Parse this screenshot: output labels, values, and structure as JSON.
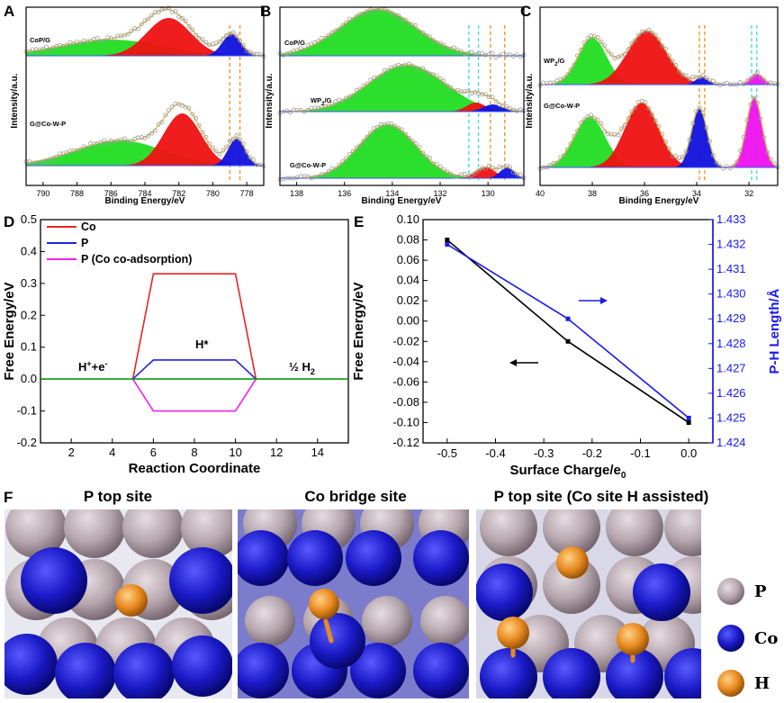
{
  "panels": {
    "A": "A",
    "B": "B",
    "C": "C",
    "D": "D",
    "E": "E",
    "F": "F"
  },
  "xps": {
    "ylabel": "Intensity/a.u.",
    "xlabel": "Binding Energy/eV",
    "A": {
      "ticks": [
        "790",
        "788",
        "786",
        "784",
        "782",
        "780",
        "778"
      ],
      "top": "CoP/G",
      "bottom": "G@Co-W-P"
    },
    "B": {
      "ticks": [
        "138",
        "136",
        "134",
        "132",
        "130"
      ],
      "top": "CoP/G",
      "mid": "WP",
      "mid_sub": "2",
      "mid_suffix": "/G",
      "bottom": "G@Co-W-P"
    },
    "C": {
      "ticks": [
        "40",
        "38",
        "36",
        "34",
        "32"
      ],
      "top": "WP",
      "top_sub": "2",
      "top_suffix": "/G",
      "bottom": "G@Co-W-P"
    }
  },
  "chart_data": [
    {
      "panel": "A",
      "type": "area",
      "title": "",
      "xlabel": "Binding Energy/eV",
      "ylabel": "Intensity/a.u.",
      "xlim": [
        791,
        777
      ],
      "series": [
        {
          "name": "CoP/G green component",
          "color": "#22dd22",
          "center": 786,
          "width": 3.0
        },
        {
          "name": "CoP/G red component",
          "color": "#ee1111",
          "center": 782.6,
          "width": 1.3
        },
        {
          "name": "CoP/G blue component",
          "color": "#1111dd",
          "center": 778.9,
          "width": 0.55
        },
        {
          "name": "G@Co-W-P green component",
          "color": "#22dd22",
          "center": 785.5,
          "width": 2.6
        },
        {
          "name": "G@Co-W-P red component",
          "color": "#ee1111",
          "center": 781.8,
          "width": 1.1
        },
        {
          "name": "G@Co-W-P blue component",
          "color": "#1111dd",
          "center": 778.6,
          "width": 0.5
        }
      ],
      "reference_lines_eV": [
        779.0,
        778.4
      ]
    },
    {
      "panel": "B",
      "type": "area",
      "title": "",
      "xlabel": "Binding Energy/eV",
      "ylabel": "Intensity/a.u.",
      "xlim": [
        138.7,
        128.5
      ],
      "series": [
        {
          "name": "CoP/G green component",
          "color": "#22dd22",
          "center": 134.6,
          "width": 1.6
        },
        {
          "name": "WP2/G green component",
          "color": "#22dd22",
          "center": 133.4,
          "width": 1.6
        },
        {
          "name": "WP2/G red component",
          "color": "#ee1111",
          "center": 130.5,
          "width": 0.4
        },
        {
          "name": "WP2/G blue component",
          "color": "#1111dd",
          "center": 129.8,
          "width": 0.4
        },
        {
          "name": "G@Co-W-P green component",
          "color": "#22dd22",
          "center": 134.2,
          "width": 1.2
        },
        {
          "name": "G@Co-W-P red component",
          "color": "#ee1111",
          "center": 130.1,
          "width": 0.4
        },
        {
          "name": "G@Co-W-P blue component",
          "color": "#1111dd",
          "center": 129.2,
          "width": 0.3
        }
      ],
      "reference_lines_eV": [
        130.8,
        130.4,
        129.9,
        129.3
      ]
    },
    {
      "panel": "C",
      "type": "area",
      "title": "",
      "xlabel": "Binding Energy/eV",
      "ylabel": "Intensity/a.u.",
      "xlim": [
        40,
        30.9
      ],
      "series": [
        {
          "name": "WP2/G green component",
          "color": "#22dd22",
          "center": 38.0,
          "width": 0.55
        },
        {
          "name": "WP2/G red component",
          "color": "#ee1111",
          "center": 35.9,
          "width": 0.75
        },
        {
          "name": "WP2/G blue component",
          "color": "#1111dd",
          "center": 33.8,
          "width": 0.25
        },
        {
          "name": "WP2/G magenta component",
          "color": "#ee11ee",
          "center": 31.7,
          "width": 0.25
        },
        {
          "name": "G@Co-W-P green component",
          "color": "#22dd22",
          "center": 38.1,
          "width": 0.6
        },
        {
          "name": "G@Co-W-P red component",
          "color": "#ee1111",
          "center": 36.1,
          "width": 0.65
        },
        {
          "name": "G@Co-W-P blue component",
          "color": "#1111dd",
          "center": 33.9,
          "width": 0.3
        },
        {
          "name": "G@Co-W-P magenta component",
          "color": "#ee11ee",
          "center": 31.8,
          "width": 0.3
        }
      ],
      "reference_lines_eV": [
        33.9,
        33.7,
        31.9,
        31.7
      ]
    },
    {
      "panel": "D",
      "type": "line",
      "xlabel": "Reaction Coordinate",
      "ylabel": "Free Energy/eV",
      "xlim": [
        0.5,
        15.5
      ],
      "ylim": [
        -0.2,
        0.5
      ],
      "xticks": [
        2,
        4,
        6,
        8,
        10,
        12,
        14
      ],
      "yticks": [
        -0.2,
        -0.1,
        0.0,
        0.1,
        0.2,
        0.3,
        0.4,
        0.5
      ],
      "series": [
        {
          "name": "Co",
          "color": "#ee2222",
          "x": [
            5,
            6,
            10,
            11
          ],
          "y": [
            0,
            0.33,
            0.33,
            0
          ]
        },
        {
          "name": "P",
          "color": "#2222dd",
          "x": [
            5,
            6,
            10,
            11
          ],
          "y": [
            0,
            0.06,
            0.06,
            0
          ]
        },
        {
          "name": "P (Co co-adsorption)",
          "color": "#ee22ee",
          "x": [
            5,
            6,
            10,
            11
          ],
          "y": [
            0,
            -0.1,
            -0.1,
            0
          ]
        },
        {
          "name": "baseline",
          "color": "#119911",
          "x": [
            0.5,
            5,
            11,
            15.5
          ],
          "y": [
            0,
            0,
            0,
            0
          ]
        }
      ],
      "annotations": {
        "left": "H",
        "left_sup": "+",
        "left_mid": "+e",
        "left_sup2": "-",
        "middle": "H*",
        "right": "½ H",
        "right_sub": "2"
      }
    },
    {
      "panel": "E",
      "type": "line",
      "xlabel": "Surface Charge/e",
      "xlabel_sub": "0",
      "ylabel": "Free Energy/eV",
      "ylabel_right": "P-H Length/Å",
      "xlim": [
        -0.55,
        0.05
      ],
      "ylim": [
        -0.12,
        0.1
      ],
      "ylim_right": [
        1.424,
        1.433
      ],
      "xticks": [
        -0.5,
        -0.4,
        -0.3,
        -0.2,
        -0.1,
        0.0
      ],
      "yticks": [
        -0.12,
        -0.1,
        -0.08,
        -0.06,
        -0.04,
        -0.02,
        0.0,
        0.02,
        0.04,
        0.06,
        0.08,
        0.1
      ],
      "yticks_right": [
        1.424,
        1.425,
        1.426,
        1.427,
        1.428,
        1.429,
        1.43,
        1.431,
        1.432,
        1.433
      ],
      "series": [
        {
          "name": "Free Energy",
          "color": "#000000",
          "axis": "left",
          "x": [
            -0.5,
            -0.25,
            0.0
          ],
          "y": [
            0.08,
            -0.02,
            -0.1
          ]
        },
        {
          "name": "P-H Length",
          "color": "#1a1aee",
          "axis": "right",
          "x": [
            -0.5,
            -0.25,
            0.0
          ],
          "y": [
            1.432,
            1.429,
            1.425
          ]
        }
      ]
    }
  ],
  "panelF": {
    "titles": [
      "P top site",
      "Co bridge site",
      "P top site (Co site H assisted)"
    ],
    "legend": [
      {
        "label": "P",
        "color": "#a9909f"
      },
      {
        "label": "Co",
        "color": "#1d1ddd"
      },
      {
        "label": "H",
        "color": "#e88a1f"
      }
    ]
  }
}
